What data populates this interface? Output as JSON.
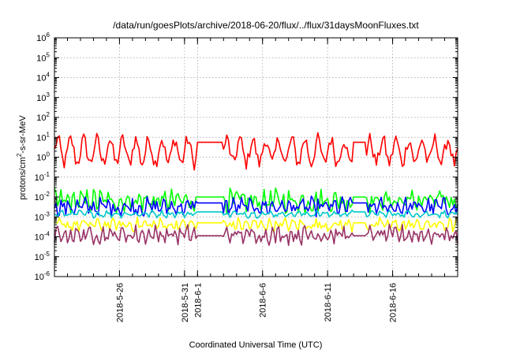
{
  "chart_data": {
    "type": "line",
    "title": "/data/run/goesPlots/archive/2018-06-20/flux/../flux/31daysMoonFluxes.txt",
    "xlabel": "Coordinated Universal Time (UTC)",
    "ylabel": {
      "base": "protons/cm",
      "sup": "2",
      "rest": "-s-sr-MeV"
    },
    "yscale": "log",
    "ylim_exp": [
      -6,
      6
    ],
    "y_ticks": [
      {
        "base": "10",
        "exp": "-6"
      },
      {
        "base": "10",
        "exp": "-5"
      },
      {
        "base": "10",
        "exp": "-4"
      },
      {
        "base": "10",
        "exp": "-3"
      },
      {
        "base": "10",
        "exp": "-2"
      },
      {
        "base": "10",
        "exp": "-1"
      },
      {
        "base": "10",
        "exp": "0"
      },
      {
        "base": "10",
        "exp": "1"
      },
      {
        "base": "10",
        "exp": "2"
      },
      {
        "base": "10",
        "exp": "3"
      },
      {
        "base": "10",
        "exp": "4"
      },
      {
        "base": "10",
        "exp": "5"
      },
      {
        "base": "10",
        "exp": "6"
      }
    ],
    "x_range_days": [
      "2018-05-21",
      "2018-06-21"
    ],
    "x_ticks": [
      "2018-5-26",
      "2018-5-31",
      "2018-6-1",
      "2018-6-6",
      "2018-6-11",
      "2018-6-16"
    ],
    "grid": true,
    "legend": "none",
    "data_gaps": [
      [
        "2018-06-01",
        "2018-06-03"
      ],
      [
        "2018-06-13",
        "2018-06-14"
      ]
    ],
    "series": [
      {
        "color": "#ff0000",
        "base_exp": 0.3,
        "amplitude": 0.6,
        "noise": 0.35,
        "period_days": 1.0,
        "gap_value_exp": 0.75
      },
      {
        "color": "#00ff00",
        "base_exp": -2.2,
        "amplitude": 0.25,
        "noise": 0.45,
        "period_days": 0.5,
        "gap_value_exp": -2.0
      },
      {
        "color": "#0000ff",
        "base_exp": -2.5,
        "amplitude": 0.2,
        "noise": 0.35,
        "period_days": 0.6,
        "gap_value_exp": -2.3
      },
      {
        "color": "#00c8c8",
        "base_exp": -2.85,
        "amplitude": 0.1,
        "noise": 0.12,
        "period_days": 0.7,
        "gap_value_exp": -2.75
      },
      {
        "color": "#ffff00",
        "base_exp": -3.4,
        "amplitude": 0.15,
        "noise": 0.25,
        "period_days": 0.6,
        "gap_value_exp": -3.3
      },
      {
        "color": "#993366",
        "base_exp": -3.9,
        "amplitude": 0.25,
        "noise": 0.3,
        "period_days": 0.5,
        "gap_value_exp": -3.95
      }
    ]
  }
}
